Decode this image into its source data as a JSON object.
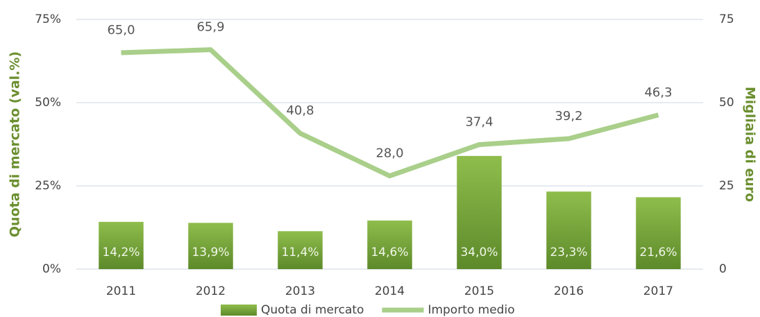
{
  "chart_data": {
    "type": "bar",
    "y_label": "Quota di mercato (val.%)",
    "y2_label": "Migliaia di euro",
    "categories": [
      "2011",
      "2012",
      "2013",
      "2014",
      "2015",
      "2016",
      "2017"
    ],
    "series": [
      {
        "name": "Quota di mercato",
        "type": "bar",
        "color": "#6f9a35",
        "values": [
          14.2,
          13.9,
          11.4,
          14.6,
          34.0,
          23.3,
          21.6
        ],
        "value_labels": [
          "14,2%",
          "13,9%",
          "11,4%",
          "14,6%",
          "34,0%",
          "23,3%",
          "21,6%"
        ]
      },
      {
        "name": "Importo medio",
        "type": "line",
        "axis": "y2",
        "color": "#a9cf8a",
        "values": [
          65.0,
          65.9,
          40.8,
          28.0,
          37.4,
          39.2,
          46.3
        ],
        "value_labels": [
          "65,0",
          "65,9",
          "40,8",
          "28,0",
          "37,4",
          "39,2",
          "46,3"
        ]
      }
    ],
    "ylim": [
      0,
      75
    ],
    "yticks": [
      {
        "value": 0,
        "label": "0%"
      },
      {
        "value": 25,
        "label": "25%"
      },
      {
        "value": 50,
        "label": "50%"
      },
      {
        "value": 75,
        "label": "75%"
      }
    ],
    "y2lim": [
      0,
      75
    ],
    "y2ticks": [
      0,
      25,
      50,
      75
    ],
    "grid": true,
    "legend": "bottom"
  }
}
